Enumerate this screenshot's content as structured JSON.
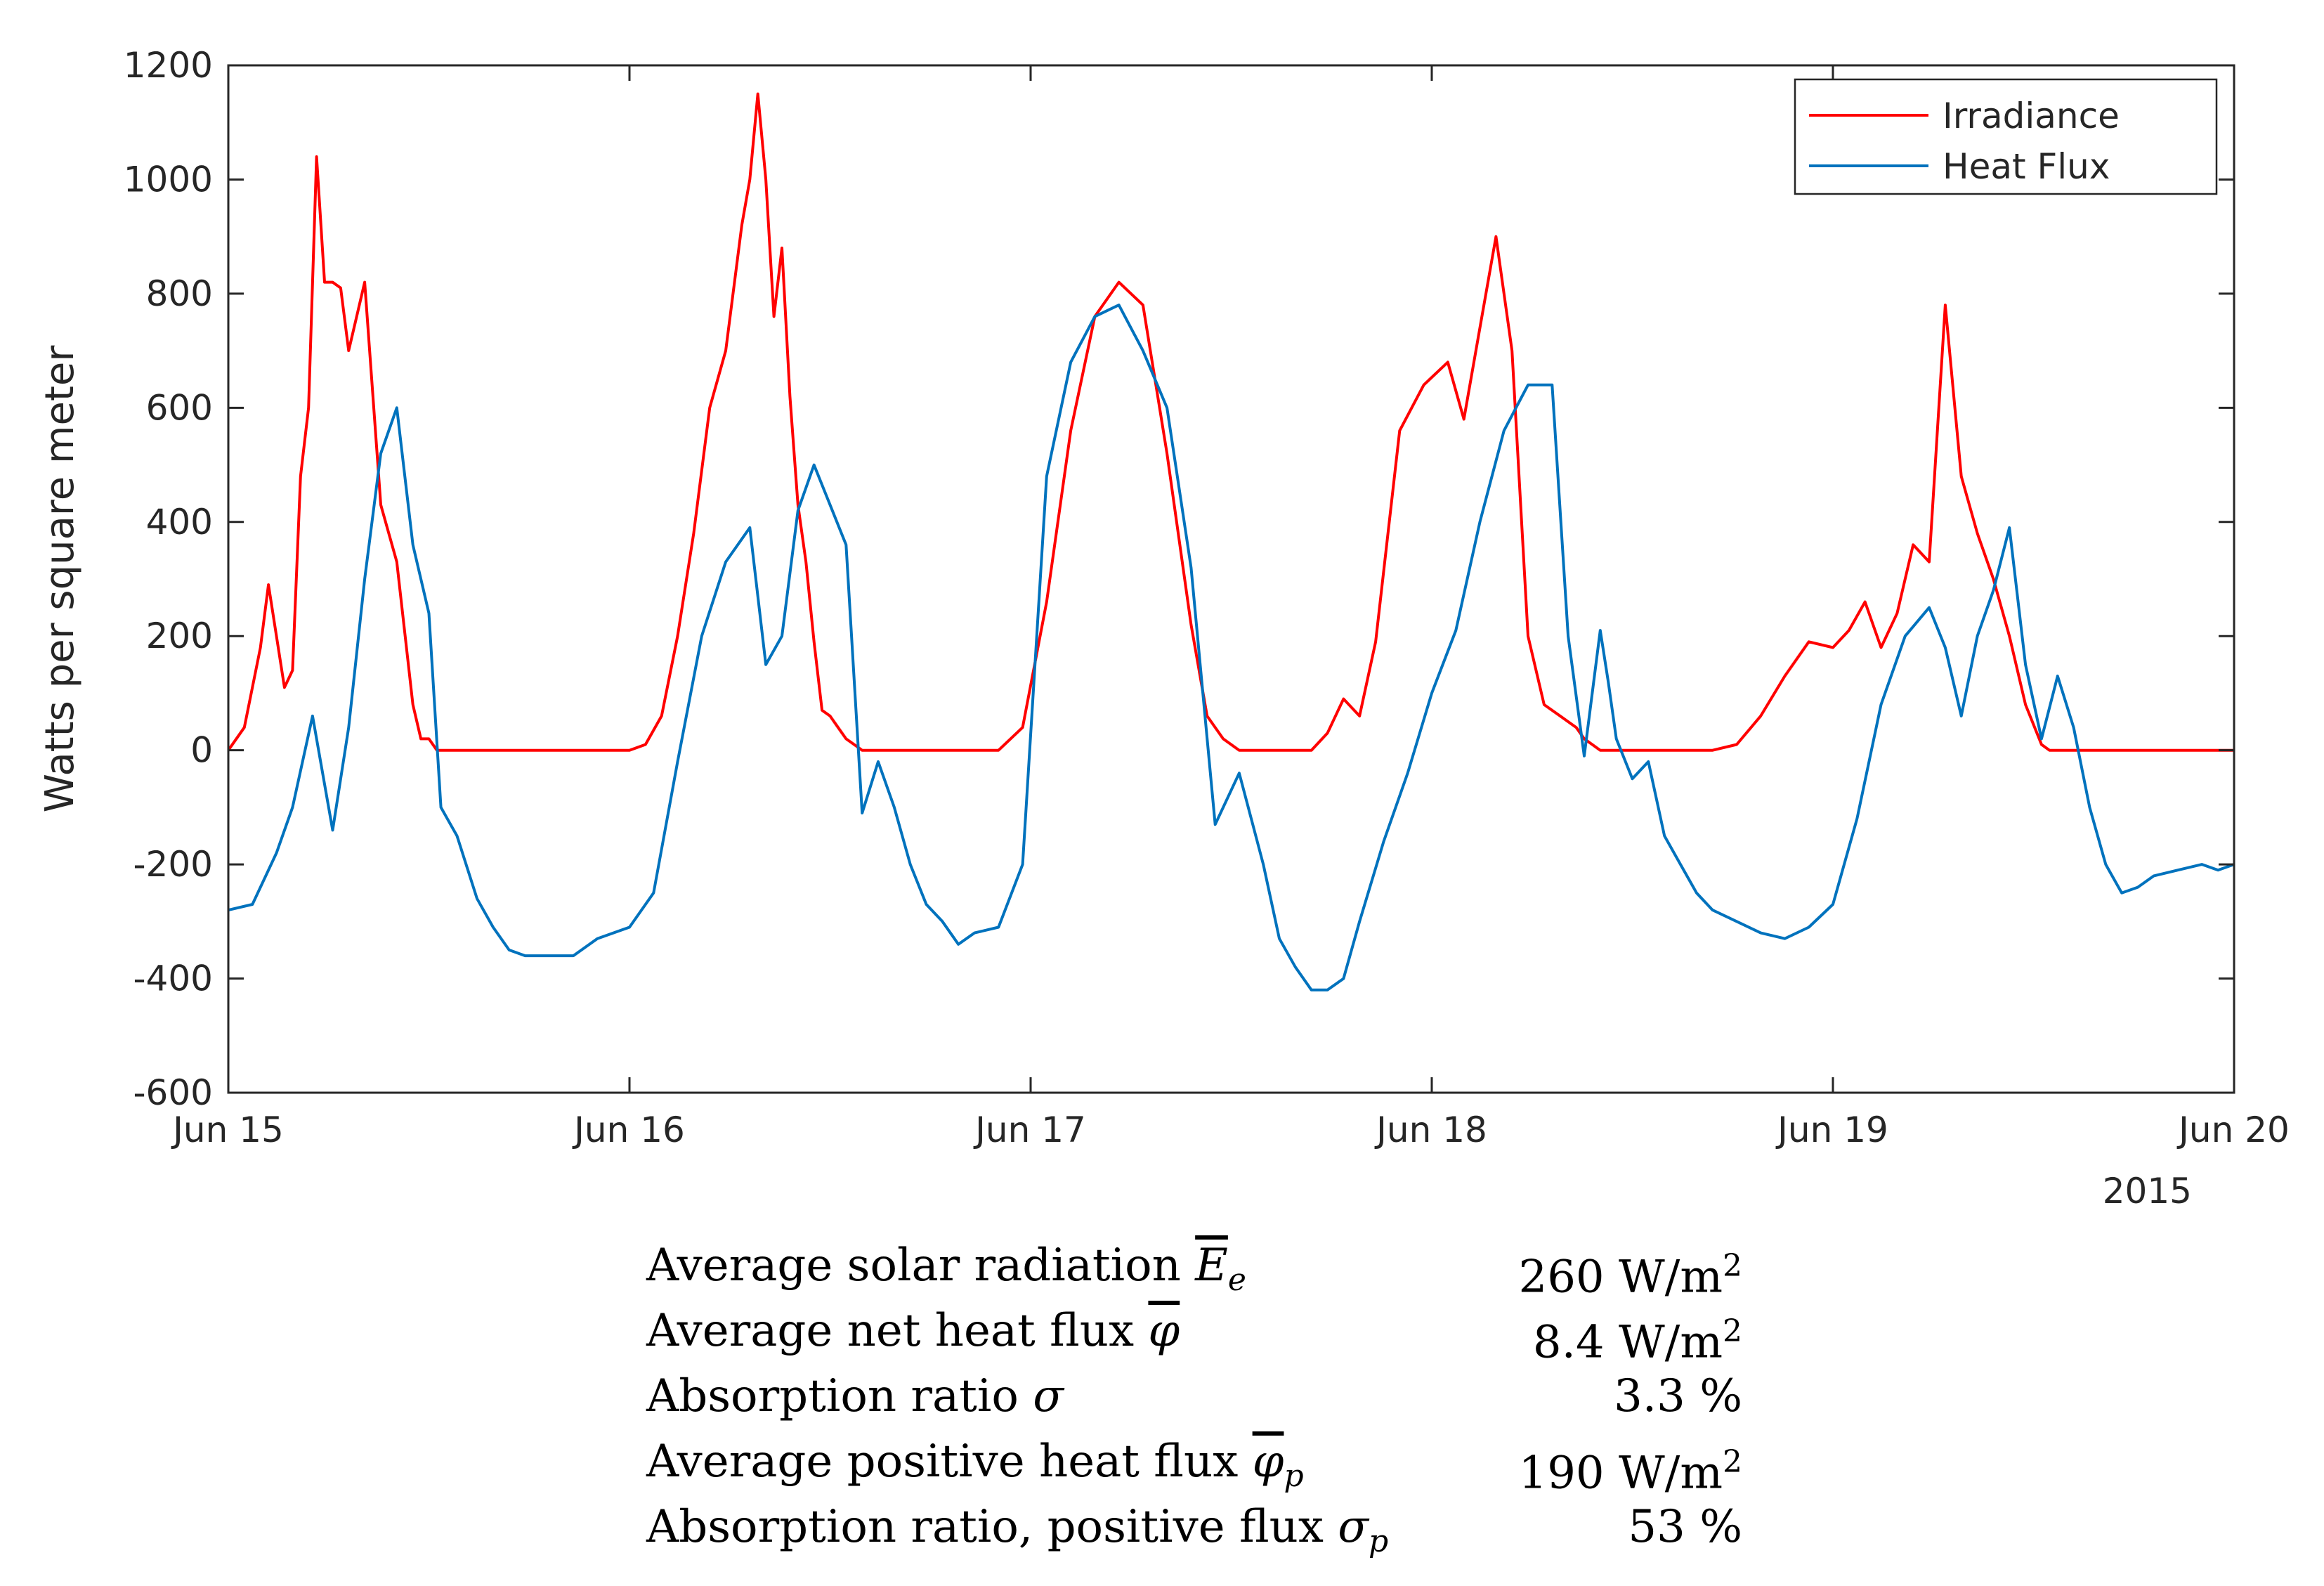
{
  "chart_data": {
    "type": "line",
    "ylabel": "Watts per square meter",
    "xlabel": "",
    "year_label": "2015",
    "ylim": [
      -600,
      1200
    ],
    "yticks": [
      -600,
      -400,
      -200,
      0,
      200,
      400,
      600,
      800,
      1000,
      1200
    ],
    "xlim_days": [
      0,
      5
    ],
    "xticks": [
      {
        "label": "Jun 15",
        "day": 0
      },
      {
        "label": "Jun 16",
        "day": 1
      },
      {
        "label": "Jun 17",
        "day": 2
      },
      {
        "label": "Jun 18",
        "day": 3
      },
      {
        "label": "Jun 19",
        "day": 4
      },
      {
        "label": "Jun 20",
        "day": 5
      }
    ],
    "legend_position": "top-right",
    "series": [
      {
        "name": "Irradiance",
        "color": "#ff0000",
        "x": [
          0.0,
          0.04,
          0.08,
          0.1,
          0.12,
          0.14,
          0.16,
          0.18,
          0.2,
          0.22,
          0.24,
          0.26,
          0.28,
          0.3,
          0.34,
          0.38,
          0.42,
          0.46,
          0.48,
          0.5,
          0.52,
          0.54,
          0.56,
          0.58,
          0.6,
          0.62,
          0.66,
          0.7,
          0.76,
          0.82,
          0.88,
          0.94,
          1.0,
          1.04,
          1.08,
          1.12,
          1.16,
          1.2,
          1.24,
          1.28,
          1.3,
          1.32,
          1.34,
          1.36,
          1.38,
          1.4,
          1.42,
          1.44,
          1.46,
          1.48,
          1.5,
          1.52,
          1.54,
          1.56,
          1.58,
          1.62,
          1.66,
          1.7,
          1.74,
          1.8,
          1.86,
          1.92,
          1.98,
          2.04,
          2.1,
          2.16,
          2.22,
          2.28,
          2.34,
          2.4,
          2.44,
          2.48,
          2.52,
          2.56,
          2.6,
          2.64,
          2.66,
          2.7,
          2.74,
          2.78,
          2.82,
          2.86,
          2.92,
          2.98,
          3.04,
          3.08,
          3.12,
          3.16,
          3.2,
          3.24,
          3.28,
          3.32,
          3.36,
          3.38,
          3.4,
          3.42,
          3.44,
          3.46,
          3.48,
          3.5,
          3.52,
          3.54,
          3.56,
          3.6,
          3.64,
          3.7,
          3.76,
          3.82,
          3.88,
          3.94,
          4.0,
          4.04,
          4.08,
          4.12,
          4.16,
          4.2,
          4.24,
          4.28,
          4.32,
          4.36,
          4.4,
          4.44,
          4.48,
          4.52,
          4.54,
          4.56,
          4.58,
          4.6,
          4.62,
          4.64,
          4.66,
          4.68,
          4.7,
          4.72,
          4.76,
          4.8,
          4.86,
          4.92,
          5.0
        ],
        "y": [
          0,
          40,
          180,
          290,
          200,
          110,
          140,
          480,
          600,
          1040,
          820,
          820,
          810,
          700,
          820,
          430,
          330,
          80,
          20,
          20,
          0,
          0,
          0,
          0,
          0,
          0,
          0,
          0,
          0,
          0,
          0,
          0,
          0,
          10,
          60,
          200,
          380,
          600,
          700,
          920,
          1000,
          1150,
          1000,
          760,
          880,
          620,
          430,
          330,
          190,
          70,
          60,
          40,
          20,
          10,
          0,
          0,
          0,
          0,
          0,
          0,
          0,
          0,
          40,
          260,
          560,
          760,
          820,
          780,
          520,
          220,
          60,
          20,
          0,
          0,
          0,
          0,
          0,
          0,
          30,
          90,
          60,
          190,
          560,
          640,
          680,
          580,
          740,
          900,
          700,
          200,
          80,
          60,
          40,
          20,
          10,
          0,
          0,
          0,
          0,
          0,
          0,
          0,
          0,
          0,
          0,
          0,
          10,
          60,
          130,
          190,
          180,
          210,
          260,
          180,
          240,
          360,
          330,
          780,
          480,
          380,
          300,
          200,
          80,
          10,
          0,
          0,
          0,
          0,
          0,
          0,
          0,
          0,
          0,
          0,
          0,
          0,
          0,
          0,
          0
        ]
      },
      {
        "name": "Heat Flux",
        "color": "#0072bd",
        "x": [
          0.0,
          0.06,
          0.12,
          0.16,
          0.21,
          0.26,
          0.3,
          0.34,
          0.38,
          0.42,
          0.46,
          0.5,
          0.53,
          0.57,
          0.62,
          0.66,
          0.7,
          0.74,
          0.8,
          0.86,
          0.92,
          1.0,
          1.06,
          1.12,
          1.18,
          1.24,
          1.3,
          1.34,
          1.38,
          1.42,
          1.46,
          1.5,
          1.54,
          1.58,
          1.62,
          1.66,
          1.7,
          1.74,
          1.78,
          1.82,
          1.86,
          1.92,
          1.98,
          2.04,
          2.1,
          2.16,
          2.22,
          2.28,
          2.34,
          2.4,
          2.46,
          2.52,
          2.58,
          2.62,
          2.66,
          2.7,
          2.74,
          2.78,
          2.82,
          2.88,
          2.94,
          3.0,
          3.06,
          3.12,
          3.18,
          3.24,
          3.3,
          3.34,
          3.38,
          3.42,
          3.44,
          3.46,
          3.5,
          3.54,
          3.58,
          3.62,
          3.66,
          3.7,
          3.76,
          3.82,
          3.88,
          3.94,
          4.0,
          4.06,
          4.12,
          4.18,
          4.24,
          4.28,
          4.32,
          4.36,
          4.4,
          4.44,
          4.48,
          4.52,
          4.56,
          4.6,
          4.64,
          4.68,
          4.72,
          4.76,
          4.8,
          4.86,
          4.92,
          4.96,
          5.0
        ],
        "y": [
          -280,
          -270,
          -180,
          -100,
          60,
          -140,
          40,
          300,
          520,
          600,
          360,
          240,
          -100,
          -150,
          -260,
          -310,
          -350,
          -360,
          -360,
          -360,
          -330,
          -310,
          -250,
          -20,
          200,
          330,
          390,
          150,
          200,
          420,
          500,
          430,
          360,
          -110,
          -20,
          -100,
          -200,
          -270,
          -300,
          -340,
          -320,
          -310,
          -200,
          480,
          680,
          760,
          780,
          700,
          600,
          320,
          -130,
          -40,
          -200,
          -330,
          -380,
          -420,
          -420,
          -400,
          -300,
          -160,
          -40,
          100,
          210,
          400,
          560,
          640,
          640,
          200,
          -10,
          210,
          120,
          20,
          -50,
          -20,
          -150,
          -200,
          -250,
          -280,
          -300,
          -320,
          -330,
          -310,
          -270,
          -120,
          80,
          200,
          250,
          180,
          60,
          200,
          280,
          390,
          150,
          20,
          130,
          40,
          -100,
          -200,
          -250,
          -240,
          -220,
          -210,
          -200,
          -210,
          -200
        ]
      }
    ]
  },
  "stats": [
    {
      "label": "Average solar radiation",
      "symbol": "E",
      "subscript": "e",
      "overline": true,
      "value": "260 W/m",
      "sup": "2"
    },
    {
      "label": "Average net heat flux",
      "symbol": "φ",
      "subscript": "",
      "overline": true,
      "value": "8.4 W/m",
      "sup": "2"
    },
    {
      "label": "Absorption ratio",
      "symbol": "σ",
      "subscript": "",
      "overline": false,
      "value": "3.3 %",
      "sup": ""
    },
    {
      "label": "Average positive heat flux",
      "symbol": "φ",
      "subscript": "p",
      "overline": true,
      "value": "190 W/m",
      "sup": "2"
    },
    {
      "label": "Absorption ratio, positive flux",
      "symbol": "σ",
      "subscript": "p",
      "overline": false,
      "value": "53 %",
      "sup": ""
    }
  ]
}
